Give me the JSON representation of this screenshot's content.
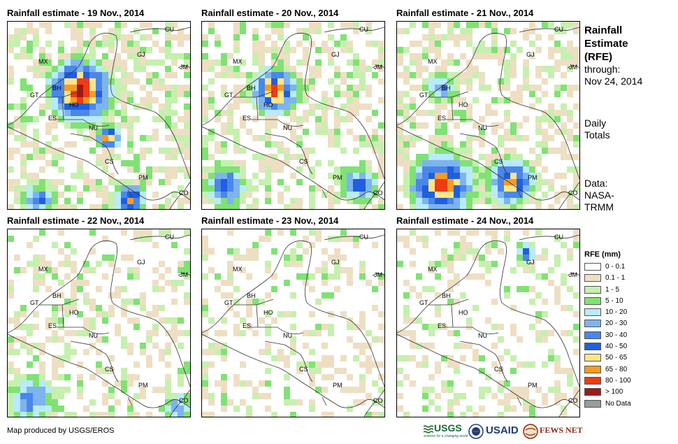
{
  "panels": [
    {
      "title": "Rainfall estimate - 19 Nov., 2014"
    },
    {
      "title": "Rainfall estimate - 20 Nov., 2014"
    },
    {
      "title": "Rainfall estimate - 21 Nov., 2014"
    },
    {
      "title": "Rainfall estimate - 22 Nov., 2014"
    },
    {
      "title": "Rainfall estimate - 23 Nov., 2014"
    },
    {
      "title": "Rainfall estimate - 24 Nov., 2014"
    }
  ],
  "country_labels": [
    "CU",
    "MX",
    "GJ",
    "JM",
    "BH",
    "GT",
    "HO",
    "ES",
    "NU",
    "CS",
    "PM",
    "CO"
  ],
  "sidebar": {
    "title_line1": "Rainfall",
    "title_line2": "Estimate",
    "title_line3": "(RFE)",
    "through_label": "through:",
    "through_date": "Nov 24, 2014",
    "totals_line1": "Daily",
    "totals_line2": "Totals",
    "data_line1": "Data:",
    "data_line2": "NASA-",
    "data_line3": "TRMM"
  },
  "legend": {
    "title": "RFE (mm)",
    "items": [
      {
        "label": "0 - 0.1",
        "color": "#ffffff"
      },
      {
        "label": "0.1 - 1",
        "color": "#eedfc3"
      },
      {
        "label": "1 - 5",
        "color": "#c6f0ae"
      },
      {
        "label": "5 - 10",
        "color": "#80e274"
      },
      {
        "label": "10 - 20",
        "color": "#b8ebfb"
      },
      {
        "label": "20 - 30",
        "color": "#7db4ef"
      },
      {
        "label": "30 - 40",
        "color": "#4a87ea"
      },
      {
        "label": "40 - 50",
        "color": "#1f5fe0"
      },
      {
        "label": "50 - 65",
        "color": "#fde68a"
      },
      {
        "label": "65 - 80",
        "color": "#f99b20"
      },
      {
        "label": "80 - 100",
        "color": "#f03b14"
      },
      {
        "label": "> 100",
        "color": "#a01818"
      },
      {
        "label": "No Data",
        "color": "#9a9a9a"
      }
    ]
  },
  "footer": {
    "credit": "Map produced by USGS/EROS"
  },
  "logos": {
    "usgs": "USGS",
    "usgs_tagline": "science for a changing world",
    "usaid": "USAID",
    "fewsnet": "FEWS NET"
  }
}
